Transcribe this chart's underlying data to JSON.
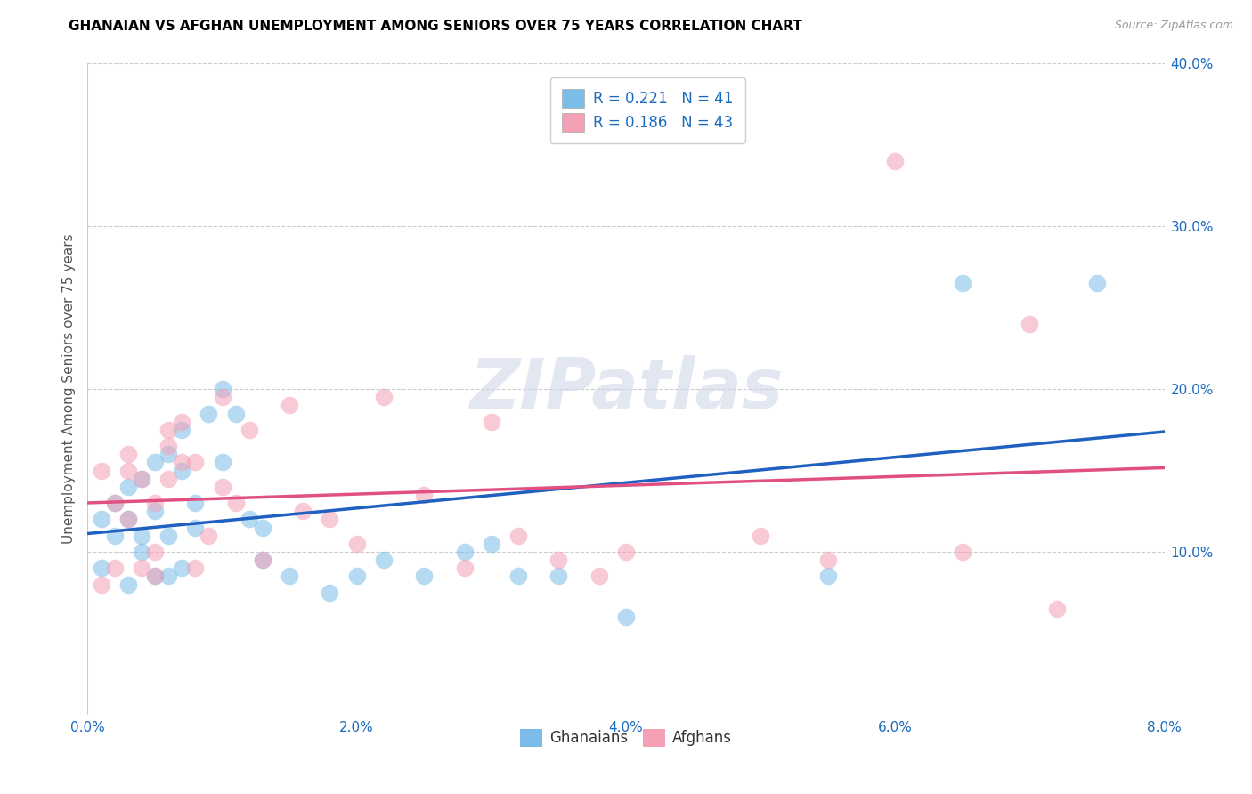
{
  "title": "GHANAIAN VS AFGHAN UNEMPLOYMENT AMONG SENIORS OVER 75 YEARS CORRELATION CHART",
  "source": "Source: ZipAtlas.com",
  "ylabel": "Unemployment Among Seniors over 75 years",
  "xlim": [
    0.0,
    0.08
  ],
  "ylim": [
    0.0,
    0.4
  ],
  "xticks": [
    0.0,
    0.02,
    0.04,
    0.06,
    0.08
  ],
  "yticks": [
    0.1,
    0.2,
    0.3,
    0.4
  ],
  "xtick_labels": [
    "0.0%",
    "2.0%",
    "4.0%",
    "6.0%",
    "8.0%"
  ],
  "ytick_labels": [
    "10.0%",
    "20.0%",
    "30.0%",
    "40.0%"
  ],
  "ghanaian_color": "#7bbde8",
  "afghan_color": "#f4a0b5",
  "ghanaian_line_color": "#2060c0",
  "afghan_line_color": "#e05080",
  "ghanaian_R": 0.221,
  "ghanaian_N": 41,
  "afghan_R": 0.186,
  "afghan_N": 43,
  "watermark": "ZIPatlas",
  "ghanaian_x": [
    0.001,
    0.001,
    0.002,
    0.002,
    0.003,
    0.003,
    0.003,
    0.004,
    0.004,
    0.004,
    0.005,
    0.005,
    0.005,
    0.006,
    0.006,
    0.006,
    0.007,
    0.007,
    0.007,
    0.008,
    0.008,
    0.009,
    0.01,
    0.01,
    0.011,
    0.012,
    0.013,
    0.013,
    0.015,
    0.018,
    0.02,
    0.022,
    0.025,
    0.028,
    0.03,
    0.032,
    0.035,
    0.04,
    0.055,
    0.065,
    0.075
  ],
  "ghanaian_y": [
    0.12,
    0.09,
    0.13,
    0.11,
    0.08,
    0.12,
    0.14,
    0.1,
    0.11,
    0.145,
    0.085,
    0.125,
    0.155,
    0.085,
    0.11,
    0.16,
    0.09,
    0.15,
    0.175,
    0.115,
    0.13,
    0.185,
    0.2,
    0.155,
    0.185,
    0.12,
    0.095,
    0.115,
    0.085,
    0.075,
    0.085,
    0.095,
    0.085,
    0.1,
    0.105,
    0.085,
    0.085,
    0.06,
    0.085,
    0.265,
    0.265
  ],
  "afghan_x": [
    0.001,
    0.001,
    0.002,
    0.002,
    0.003,
    0.003,
    0.003,
    0.004,
    0.004,
    0.005,
    0.005,
    0.005,
    0.006,
    0.006,
    0.006,
    0.007,
    0.007,
    0.008,
    0.008,
    0.009,
    0.01,
    0.01,
    0.011,
    0.012,
    0.013,
    0.015,
    0.016,
    0.018,
    0.02,
    0.022,
    0.025,
    0.028,
    0.03,
    0.032,
    0.035,
    0.038,
    0.04,
    0.05,
    0.055,
    0.06,
    0.065,
    0.07,
    0.072
  ],
  "afghan_y": [
    0.15,
    0.08,
    0.09,
    0.13,
    0.12,
    0.15,
    0.16,
    0.09,
    0.145,
    0.1,
    0.13,
    0.085,
    0.145,
    0.165,
    0.175,
    0.155,
    0.18,
    0.09,
    0.155,
    0.11,
    0.195,
    0.14,
    0.13,
    0.175,
    0.095,
    0.19,
    0.125,
    0.12,
    0.105,
    0.195,
    0.135,
    0.09,
    0.18,
    0.11,
    0.095,
    0.085,
    0.1,
    0.11,
    0.095,
    0.34,
    0.1,
    0.24,
    0.065
  ]
}
